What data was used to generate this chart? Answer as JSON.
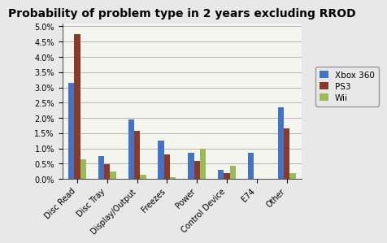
{
  "title": "Probability of problem type in 2 years excluding RROD",
  "categories": [
    "Disc Read",
    "Disc Tray",
    "Display/Output",
    "Freezes",
    "Power",
    "Control Device",
    "E74",
    "Other"
  ],
  "series": {
    "Xbox 360": [
      0.0315,
      0.0075,
      0.0195,
      0.0125,
      0.0085,
      0.003,
      0.0085,
      0.0235
    ],
    "PS3": [
      0.0475,
      0.0048,
      0.0158,
      0.008,
      0.006,
      0.002,
      0.0,
      0.0165
    ],
    "Wii": [
      0.0065,
      0.0025,
      0.0013,
      0.0005,
      0.0098,
      0.0043,
      0.0,
      0.0018
    ]
  },
  "colors": {
    "Xbox 360": "#4472C4",
    "PS3": "#8B3A2A",
    "Wii": "#9BBB59"
  },
  "ylim": [
    0,
    0.051
  ],
  "yticks": [
    0.0,
    0.005,
    0.01,
    0.015,
    0.02,
    0.025,
    0.03,
    0.035,
    0.04,
    0.045,
    0.05
  ],
  "legend_labels": [
    "Xbox 360",
    "PS3",
    "Wii"
  ],
  "background_color": "#E8E8E8",
  "plot_area_color": "#F5F5F0",
  "grid_color": "#AAAAAA",
  "title_fontsize": 10,
  "tick_fontsize": 7,
  "legend_fontsize": 7.5,
  "bar_width": 0.2
}
